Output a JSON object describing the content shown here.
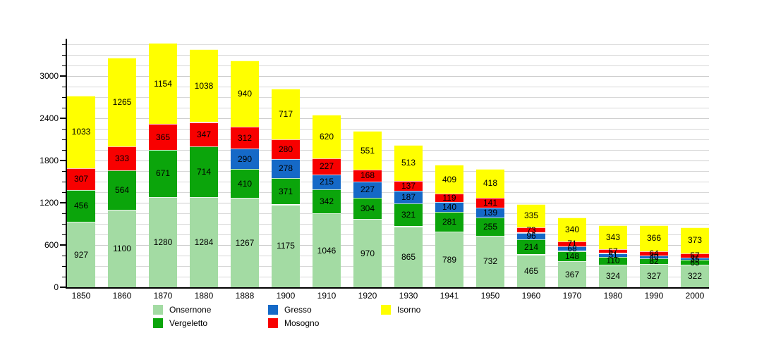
{
  "chart_data": {
    "type": "bar",
    "stacked": true,
    "title": "",
    "xlabel": "",
    "ylabel": "",
    "categories": [
      "1850",
      "1860",
      "1870",
      "1880",
      "1888",
      "1900",
      "1910",
      "1920",
      "1930",
      "1941",
      "1950",
      "1960",
      "1970",
      "1980",
      "1990",
      "2000"
    ],
    "series": [
      {
        "name": "Onsernone",
        "color": "#a3dba3",
        "values": [
          927,
          1100,
          1280,
          1284,
          1267,
          1175,
          1046,
          970,
          865,
          789,
          732,
          465,
          367,
          324,
          327,
          322
        ]
      },
      {
        "name": "Vergeletto",
        "color": "#0ba50b",
        "values": [
          456,
          564,
          671,
          714,
          410,
          371,
          342,
          304,
          321,
          281,
          255,
          214,
          148,
          110,
          82,
          65
        ]
      },
      {
        "name": "Gresso",
        "color": "#1569c7",
        "values": [
          null,
          null,
          null,
          null,
          290,
          278,
          215,
          227,
          187,
          140,
          139,
          96,
          68,
          51,
          40,
          35
        ]
      },
      {
        "name": "Mosogno",
        "color": "#f80000",
        "values": [
          307,
          333,
          365,
          347,
          312,
          280,
          227,
          168,
          137,
          119,
          141,
          73,
          71,
          57,
          64,
          57
        ]
      },
      {
        "name": "Isorno",
        "color": "#ffff00",
        "values": [
          1033,
          1265,
          1154,
          1038,
          940,
          717,
          620,
          551,
          513,
          409,
          418,
          335,
          340,
          343,
          366,
          373
        ]
      }
    ],
    "y_ticks": [
      0,
      600,
      1200,
      1800,
      2400,
      3000
    ],
    "y_minor_step": 150,
    "ylim": [
      0,
      3530
    ],
    "grid": true,
    "legend_position": "bottom",
    "label_color": "#000000",
    "grid_color": "#d8d8d8",
    "axis_color": "#000000"
  }
}
